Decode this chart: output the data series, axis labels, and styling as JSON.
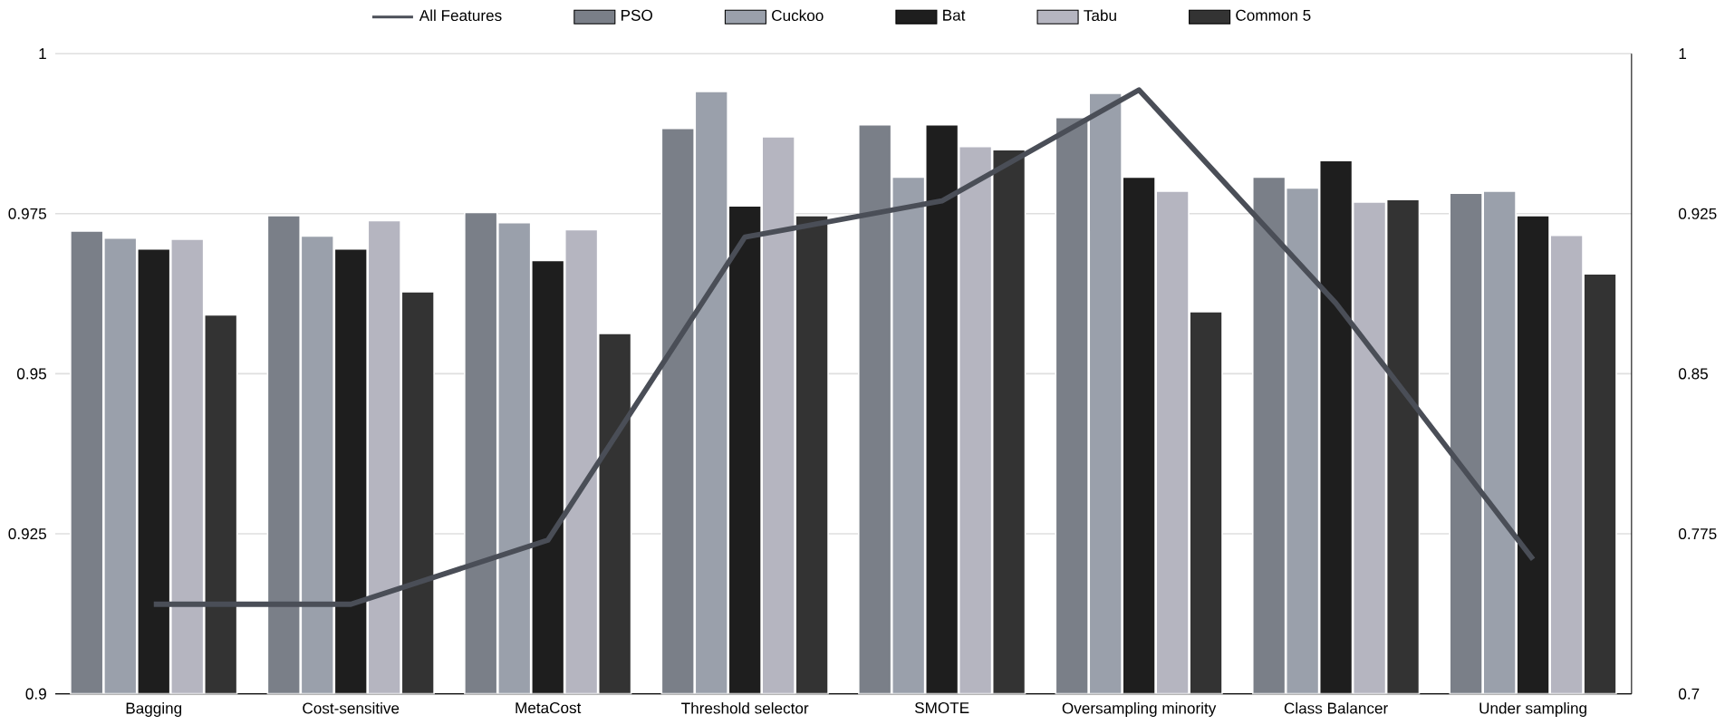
{
  "chart_data": {
    "type": "bar",
    "categories": [
      "Bagging",
      "Cost-sensitive",
      "MetaCost",
      "Threshold selector",
      "SMOTE",
      "Oversampling minority",
      "Class Balancer",
      "Under sampling"
    ],
    "series": [
      {
        "name": "All Features",
        "type": "line",
        "axis": "y2",
        "color": "#4a4e57",
        "values": [
          0.742,
          0.742,
          0.772,
          0.914,
          0.931,
          0.983,
          0.883,
          0.763
        ]
      },
      {
        "name": "PSO",
        "color": "#7a7f88",
        "values": [
          0.9723,
          0.9747,
          0.9752,
          0.9883,
          0.9889,
          0.99,
          0.9807,
          0.9782
        ]
      },
      {
        "name": "Cuckoo",
        "color": "#9aa0ab",
        "values": [
          0.9712,
          0.9715,
          0.9736,
          0.9941,
          0.9807,
          0.9938,
          0.979,
          0.9785
        ]
      },
      {
        "name": "Bat",
        "color": "#1e1e1e",
        "values": [
          0.9695,
          0.9695,
          0.9677,
          0.9762,
          0.9889,
          0.9807,
          0.9833,
          0.9747
        ]
      },
      {
        "name": "Tabu",
        "color": "#b5b5c0",
        "values": [
          0.971,
          0.9739,
          0.9725,
          0.987,
          0.9855,
          0.9785,
          0.9768,
          0.9716
        ]
      },
      {
        "name": "Common 5",
        "color": "#333333",
        "values": [
          0.9592,
          0.9628,
          0.9563,
          0.9747,
          0.985,
          0.9597,
          0.9772,
          0.9656
        ]
      }
    ],
    "ylim": [
      0.9,
      1
    ],
    "yticks": [
      0.9,
      0.925,
      0.95,
      0.975,
      1
    ],
    "y2lim": [
      0.7,
      1
    ],
    "y2ticks": [
      0.7,
      0.775,
      0.85,
      0.925,
      1
    ],
    "grid": "y",
    "legend": "top"
  }
}
